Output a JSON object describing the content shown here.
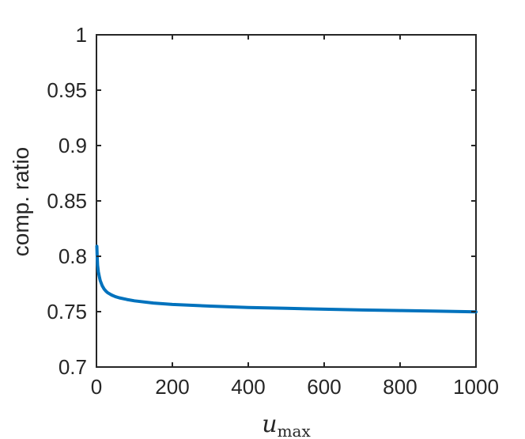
{
  "chart_data": {
    "type": "line",
    "xlabel_main": "u",
    "xlabel_sub": "max",
    "ylabel": "comp. ratio",
    "xlim": [
      0,
      1000
    ],
    "ylim": [
      0.7,
      1
    ],
    "xticks": [
      "0",
      "200",
      "400",
      "600",
      "800",
      "1000"
    ],
    "yticks": [
      "0.7",
      "0.75",
      "0.8",
      "0.85",
      "0.9",
      "0.95",
      "1"
    ],
    "grid": false,
    "line_color": "#0072bd",
    "series": [
      {
        "x": [
          1,
          2,
          3,
          5,
          8,
          10,
          15,
          20,
          25,
          30,
          40,
          50,
          60,
          80,
          100,
          150,
          200,
          300,
          400,
          500,
          600,
          700,
          800,
          900,
          1000
        ],
        "values": [
          0.809,
          0.798,
          0.792,
          0.786,
          0.781,
          0.778,
          0.7735,
          0.7705,
          0.7685,
          0.767,
          0.765,
          0.7635,
          0.7625,
          0.761,
          0.7598,
          0.7578,
          0.7565,
          0.755,
          0.7538,
          0.753,
          0.7522,
          0.7515,
          0.751,
          0.7504,
          0.7498
        ]
      }
    ]
  }
}
